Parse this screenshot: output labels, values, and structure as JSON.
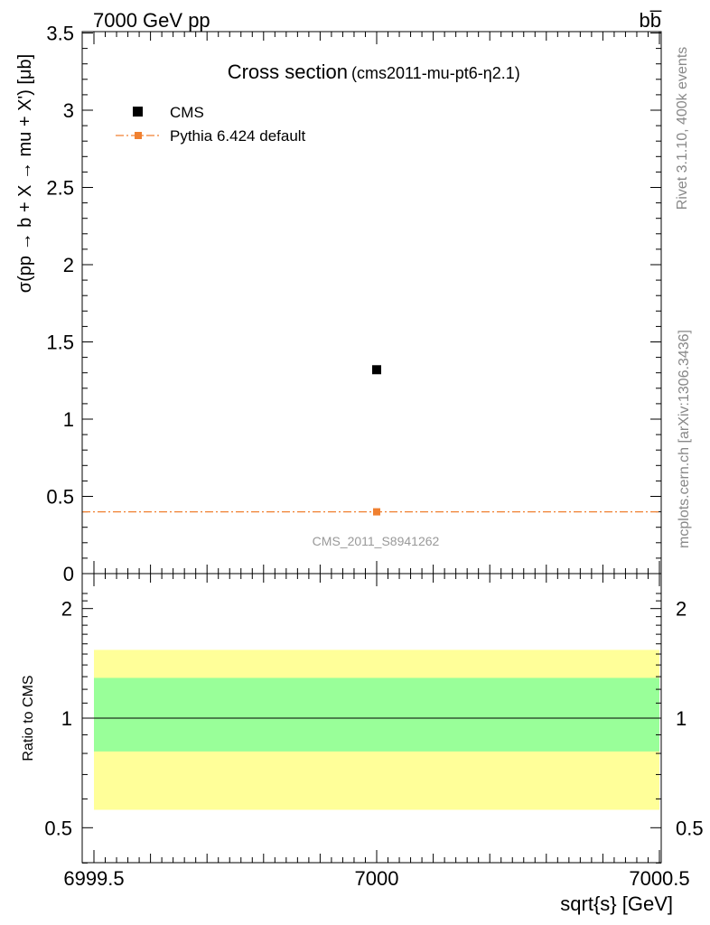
{
  "header": {
    "left": "7000 GeV pp",
    "right": "bb̅"
  },
  "side_text": {
    "rivet": "Rivet 3.1.10,  400k events",
    "mcplots": "mcplots.cern.ch [arXiv:1306.3436]"
  },
  "chart_data": [
    {
      "type": "scatter",
      "title": "Cross section",
      "subtitle": "(cms2011-mu-pt6-η2.1)",
      "ylabel": "σ(pp → b + X → mu + X') [μb]",
      "xlim": [
        6999.5,
        7000.5
      ],
      "ylim": [
        0,
        3.5
      ],
      "yticks": [
        {
          "v": 0.5,
          "label": "0.5"
        },
        {
          "v": 1,
          "label": "1"
        },
        {
          "v": 1.5,
          "label": "1.5"
        },
        {
          "v": 2,
          "label": "2"
        },
        {
          "v": 2.5,
          "label": "2.5"
        },
        {
          "v": 3,
          "label": "3"
        },
        {
          "v": 3.5,
          "label": "3.5"
        }
      ],
      "y_bottom_label": "0",
      "annotation": "CMS_2011_S8941262",
      "legend_position": "top-left",
      "series": [
        {
          "name": "CMS",
          "color": "#000000",
          "marker": "square",
          "x": [
            7000
          ],
          "y": [
            1.32
          ]
        },
        {
          "name": "Pythia 6.424 default",
          "color": "#f08030",
          "marker": "square",
          "line": "dash-dot",
          "x": [
            6999.5,
            7000,
            7000.5
          ],
          "y": [
            0.4,
            0.4,
            0.4
          ]
        }
      ]
    },
    {
      "type": "band",
      "ylabel": "Ratio to CMS",
      "xlabel": "sqrt{s} [GeV]",
      "xlim": [
        6999.5,
        7000.5
      ],
      "ylim": [
        0.35,
        2.25
      ],
      "yticks": [
        {
          "v": 0.5,
          "label": "0.5"
        },
        {
          "v": 1,
          "label": "1"
        },
        {
          "v": 2,
          "label": "2"
        }
      ],
      "xticks": [
        {
          "v": 6999.5,
          "label": "6999.5"
        },
        {
          "v": 7000,
          "label": "7000"
        },
        {
          "v": 7000.5,
          "label": "7000.5"
        }
      ],
      "reference": 1.0,
      "bands": [
        {
          "name": "outer",
          "color": "#ffff99",
          "low": 0.56,
          "high": 1.54
        },
        {
          "name": "inner",
          "color": "#99ff99",
          "low": 0.81,
          "high": 1.29
        }
      ]
    }
  ]
}
